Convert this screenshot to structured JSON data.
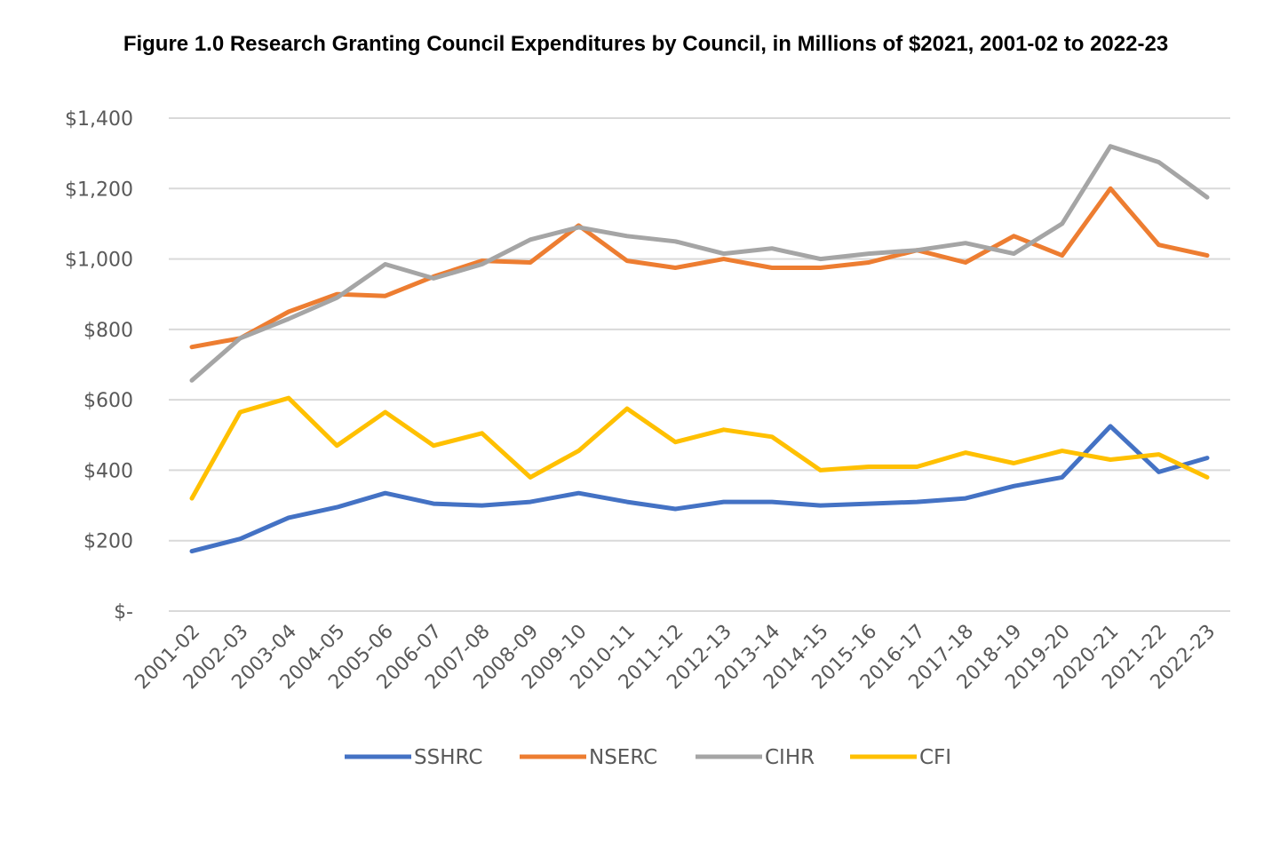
{
  "chart_data": {
    "type": "line",
    "title": "Figure 1.0 Research Granting Council Expenditures by Council, in Millions of $2021, 2001-02 to 2022-23",
    "xlabel": "",
    "ylabel": "",
    "ylim": [
      0,
      1400
    ],
    "yticks": [
      0,
      200,
      400,
      600,
      800,
      1000,
      1200,
      1400
    ],
    "ytick_labels": [
      "$-",
      "$200",
      "$400",
      "$600",
      "$800",
      "$1,000",
      "$1,200",
      "$1,400"
    ],
    "grid": true,
    "legend_position": "bottom",
    "categories": [
      "2001-02",
      "2002-03",
      "2003-04",
      "2004-05",
      "2005-06",
      "2006-07",
      "2007-08",
      "2008-09",
      "2009-10",
      "2010-11",
      "2011-12",
      "2012-13",
      "2013-14",
      "2014-15",
      "2015-16",
      "2016-17",
      "2017-18",
      "2018-19",
      "2019-20",
      "2020-21",
      "2021-22",
      "2022-23"
    ],
    "series": [
      {
        "name": "SSHRC",
        "color": "#4472C4",
        "values": [
          170,
          205,
          265,
          295,
          335,
          305,
          300,
          310,
          335,
          310,
          290,
          310,
          310,
          300,
          305,
          310,
          320,
          355,
          380,
          525,
          395,
          435
        ]
      },
      {
        "name": "NSERC",
        "color": "#ED7D31",
        "values": [
          750,
          775,
          850,
          900,
          895,
          950,
          995,
          990,
          1095,
          995,
          975,
          1000,
          975,
          975,
          990,
          1025,
          990,
          1065,
          1010,
          1200,
          1040,
          1010
        ]
      },
      {
        "name": "CIHR",
        "color": "#A5A5A5",
        "values": [
          655,
          775,
          830,
          890,
          985,
          945,
          985,
          1055,
          1090,
          1065,
          1050,
          1015,
          1030,
          1000,
          1015,
          1025,
          1045,
          1015,
          1100,
          1320,
          1275,
          1175
        ]
      },
      {
        "name": "CFI",
        "color": "#FFC000",
        "values": [
          320,
          565,
          605,
          470,
          565,
          470,
          505,
          380,
          455,
          575,
          480,
          515,
          495,
          400,
          410,
          410,
          450,
          420,
          455,
          430,
          445,
          380
        ]
      }
    ]
  }
}
